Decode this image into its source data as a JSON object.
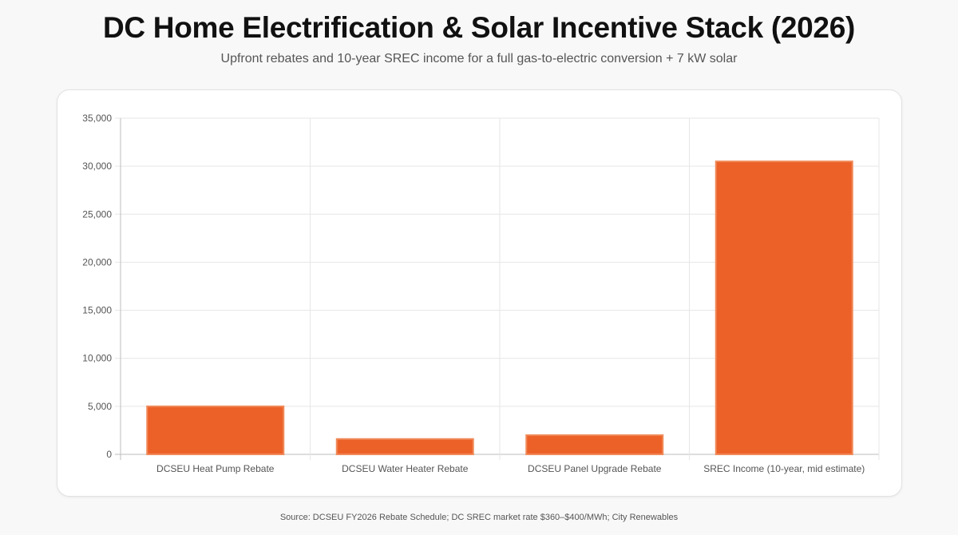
{
  "header": {
    "title": "DC Home Electrification & Solar Incentive Stack (2026)",
    "subtitle": "Upfront rebates and 10-year SREC income for a full gas-to-electric conversion + 7 kW solar"
  },
  "footer": {
    "source": "Source: DCSEU FY2026 Rebate Schedule; DC SREC market rate $360–$400/MWh; City Renewables"
  },
  "colors": {
    "bar_fill": "#ec6128",
    "bar_border": "#f08a5a",
    "grid": "#e6e6e6",
    "axis": "#bdbdbd",
    "tick_text": "#555555"
  },
  "chart_data": {
    "type": "bar",
    "title": "DC Home Electrification & Solar Incentive Stack (2026)",
    "subtitle": "Upfront rebates and 10-year SREC income for a full gas-to-electric conversion + 7 kW solar",
    "xlabel": "",
    "ylabel": "",
    "categories": [
      "DCSEU Heat Pump Rebate",
      "DCSEU Water Heater Rebate",
      "DCSEU Panel Upgrade Rebate",
      "SREC Income (10-year, mid estimate)"
    ],
    "values": [
      5000,
      1600,
      2000,
      30500
    ],
    "ylim": [
      0,
      35000
    ],
    "yticks": [
      0,
      5000,
      10000,
      15000,
      20000,
      25000,
      30000,
      35000
    ],
    "ytick_labels": [
      "0",
      "5,000",
      "10,000",
      "15,000",
      "20,000",
      "25,000",
      "30,000",
      "35,000"
    ],
    "grid": true,
    "legend": "none"
  }
}
